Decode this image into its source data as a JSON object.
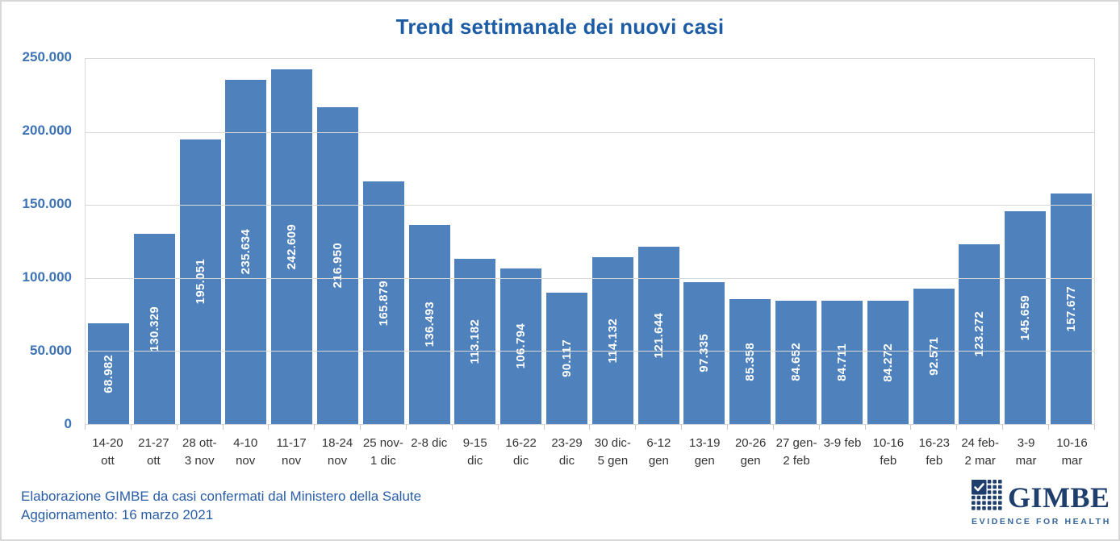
{
  "chart_data": {
    "type": "bar",
    "title": "Trend settimanale dei nuovi casi",
    "categories": [
      "14-20\nott",
      "21-27\nott",
      "28 ott-\n3 nov",
      "4-10\nnov",
      "11-17\nnov",
      "18-24\nnov",
      "25 nov-\n1 dic",
      "2-8 dic",
      "9-15\ndic",
      "16-22\ndic",
      "23-29\ndic",
      "30 dic-\n5 gen",
      "6-12\ngen",
      "13-19\ngen",
      "20-26\ngen",
      "27 gen-\n2 feb",
      "3-9 feb",
      "10-16\nfeb",
      "16-23\nfeb",
      "24 feb-\n2 mar",
      "3-9\nmar",
      "10-16\nmar"
    ],
    "values": [
      68982,
      130329,
      195051,
      235634,
      242609,
      216950,
      165879,
      136493,
      113182,
      106794,
      90117,
      114132,
      121644,
      97335,
      85358,
      84652,
      84711,
      84272,
      92571,
      123272,
      145659,
      157677
    ],
    "value_labels": [
      "68.982",
      "130.329",
      "195.051",
      "235.634",
      "242.609",
      "216.950",
      "165.879",
      "136.493",
      "113.182",
      "106.794",
      "90.117",
      "114.132",
      "121.644",
      "97.335",
      "85.358",
      "84.652",
      "84.711",
      "84.272",
      "92.571",
      "123.272",
      "145.659",
      "157.677"
    ],
    "y_ticks": [
      "250.000",
      "200.000",
      "150.000",
      "100.000",
      "50.000",
      "0"
    ],
    "ylim": [
      0,
      250000
    ],
    "grid": true,
    "legend": "none",
    "bar_color": "#4F81BD",
    "value_label_color": "#FFFFFF"
  },
  "footer": {
    "source_line": "Elaborazione GIMBE da casi confermati dal Ministero della Salute",
    "update_line": "Aggiornamento: 16 marzo 2021"
  },
  "logo": {
    "name": "GIMBE",
    "tagline": "EVIDENCE FOR HEALTH"
  },
  "colors": {
    "title": "#1C5CA5",
    "bar": "#4F81BD",
    "y_axis_label": "#3E73B5",
    "x_axis_label": "#333333",
    "footer_text": "#2A5DA8",
    "logo_navy": "#1E3E6E",
    "gridline": "#D9D9D9"
  }
}
